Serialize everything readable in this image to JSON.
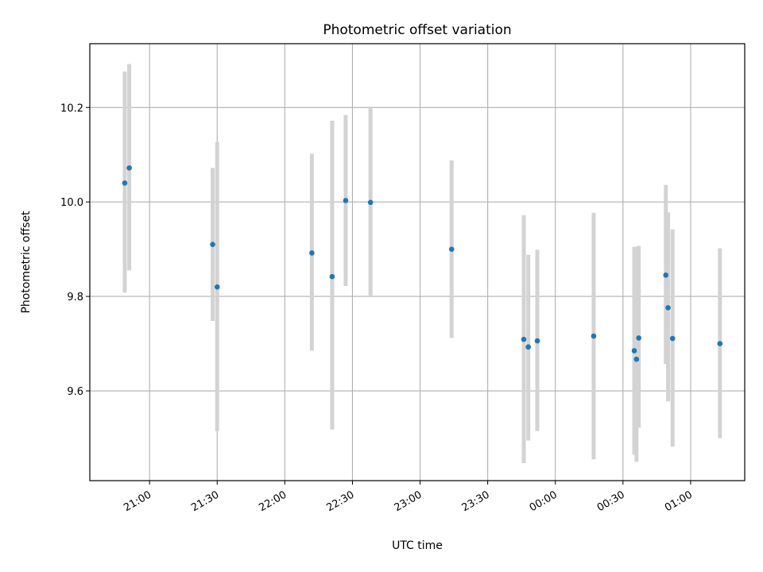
{
  "chart_data": {
    "type": "scatter",
    "title": "Photometric offset variation",
    "xlabel": "UTC time",
    "ylabel": "Photometric offset",
    "x_tick_labels": [
      "21:00",
      "21:30",
      "22:00",
      "22:30",
      "23:00",
      "23:30",
      "00:00",
      "00:30",
      "01:00"
    ],
    "y_tick_labels": [
      "9.6",
      "9.8",
      "10.0",
      "10.2"
    ],
    "y_ticks": [
      9.6,
      9.8,
      10.0,
      10.2
    ],
    "x_ticks_min": [
      1260,
      1290,
      1320,
      1350,
      1380,
      1410,
      1440,
      1470,
      1500
    ],
    "xlim": [
      1233.5,
      1524
    ],
    "ylim": [
      9.41,
      10.335
    ],
    "grid": true,
    "point_color": "#1f77b4",
    "errorbar_color": "#d3d3d3",
    "series": [
      {
        "x": [
          "20:49",
          "20:51",
          "21:28",
          "21:30",
          "22:12",
          "22:21",
          "22:27",
          "22:38",
          "23:14",
          "23:46",
          "23:48",
          "23:52",
          "00:17",
          "00:35",
          "00:36",
          "00:37",
          "00:49",
          "00:50",
          "00:52",
          "01:13"
        ],
        "x_min": [
          1249,
          1251,
          1288,
          1290,
          1332,
          1341,
          1347,
          1358,
          1394,
          1426,
          1428,
          1432,
          1457,
          1475,
          1476,
          1477,
          1489,
          1490,
          1492,
          1513
        ],
        "y": [
          10.04,
          10.072,
          9.91,
          9.82,
          9.892,
          9.842,
          10.003,
          9.999,
          9.9,
          9.709,
          9.693,
          9.706,
          9.716,
          9.685,
          9.667,
          9.712,
          9.845,
          9.776,
          9.711,
          9.7
        ],
        "y_low": [
          9.808,
          9.855,
          9.748,
          9.515,
          9.685,
          9.518,
          9.822,
          9.8,
          9.712,
          9.447,
          9.495,
          9.515,
          9.455,
          9.465,
          9.45,
          9.522,
          9.657,
          9.578,
          9.482,
          9.5
        ],
        "y_high": [
          10.276,
          10.292,
          10.072,
          10.127,
          10.102,
          10.172,
          10.184,
          10.202,
          10.088,
          9.972,
          9.888,
          9.899,
          9.977,
          9.905,
          9.905,
          9.907,
          10.036,
          9.978,
          9.942,
          9.902
        ]
      }
    ]
  }
}
